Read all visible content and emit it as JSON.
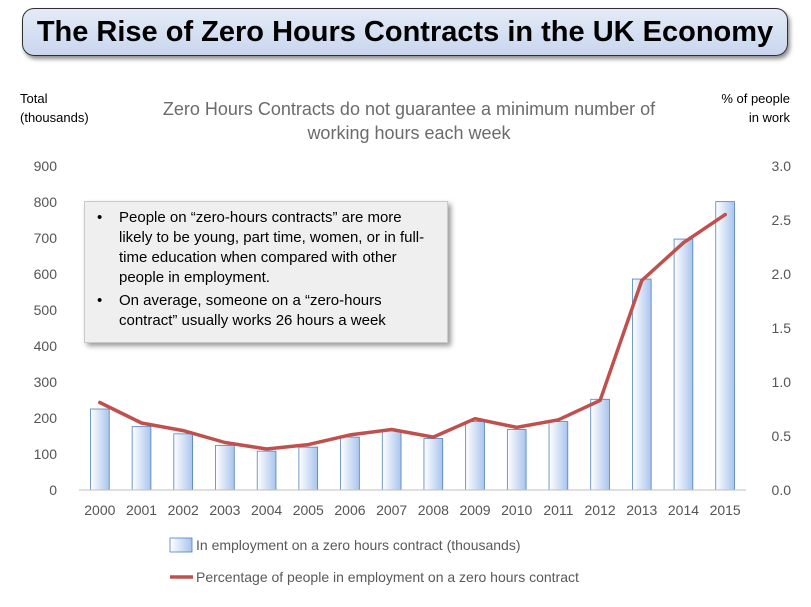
{
  "banner_title": "The Rise of Zero Hours Contracts in the UK Economy",
  "note_bullets": [
    "People on “zero-hours contracts” are more likely to be young, part time, women, or in full-time education when compared with other people in employment.",
    "On average, someone on a “zero-hours contract” usually works 26 hours a week"
  ],
  "chart_data": {
    "type": "bar",
    "title_lines": [
      "Zero Hours Contracts do not guarantee a minimum number of",
      "working hours each week"
    ],
    "ylabel_left_lines": [
      "Total",
      "(thousands)"
    ],
    "ylabel_right_lines": [
      "% of people",
      "in work"
    ],
    "categories": [
      "2000",
      "2001",
      "2002",
      "2003",
      "2004",
      "2005",
      "2006",
      "2007",
      "2008",
      "2009",
      "2010",
      "2011",
      "2012",
      "2013",
      "2014",
      "2015"
    ],
    "series": [
      {
        "name": "In employment on a zero hours contract (thousands)",
        "type": "bar",
        "axis": "left",
        "color": "#4f81bd",
        "values": [
          225,
          176,
          156,
          124,
          108,
          119,
          147,
          166,
          143,
          190,
          168,
          190,
          252,
          586,
          697,
          801
        ]
      },
      {
        "name": "Percentage of people in employment on a zero hours contract",
        "type": "line",
        "axis": "right",
        "color": "#c0504d",
        "values": [
          0.81,
          0.62,
          0.55,
          0.44,
          0.38,
          0.42,
          0.51,
          0.56,
          0.49,
          0.66,
          0.58,
          0.65,
          0.83,
          1.94,
          2.29,
          2.55
        ]
      }
    ],
    "ylim_left": [
      0,
      900
    ],
    "yticks_left": [
      "0",
      "100",
      "200",
      "300",
      "400",
      "500",
      "600",
      "700",
      "800",
      "900"
    ],
    "ylim_right": [
      0,
      3.0
    ],
    "yticks_right": [
      "0.0",
      "0.5",
      "1.0",
      "1.5",
      "2.0",
      "2.5",
      "3.0"
    ],
    "grid": false,
    "legend_position": "bottom"
  }
}
